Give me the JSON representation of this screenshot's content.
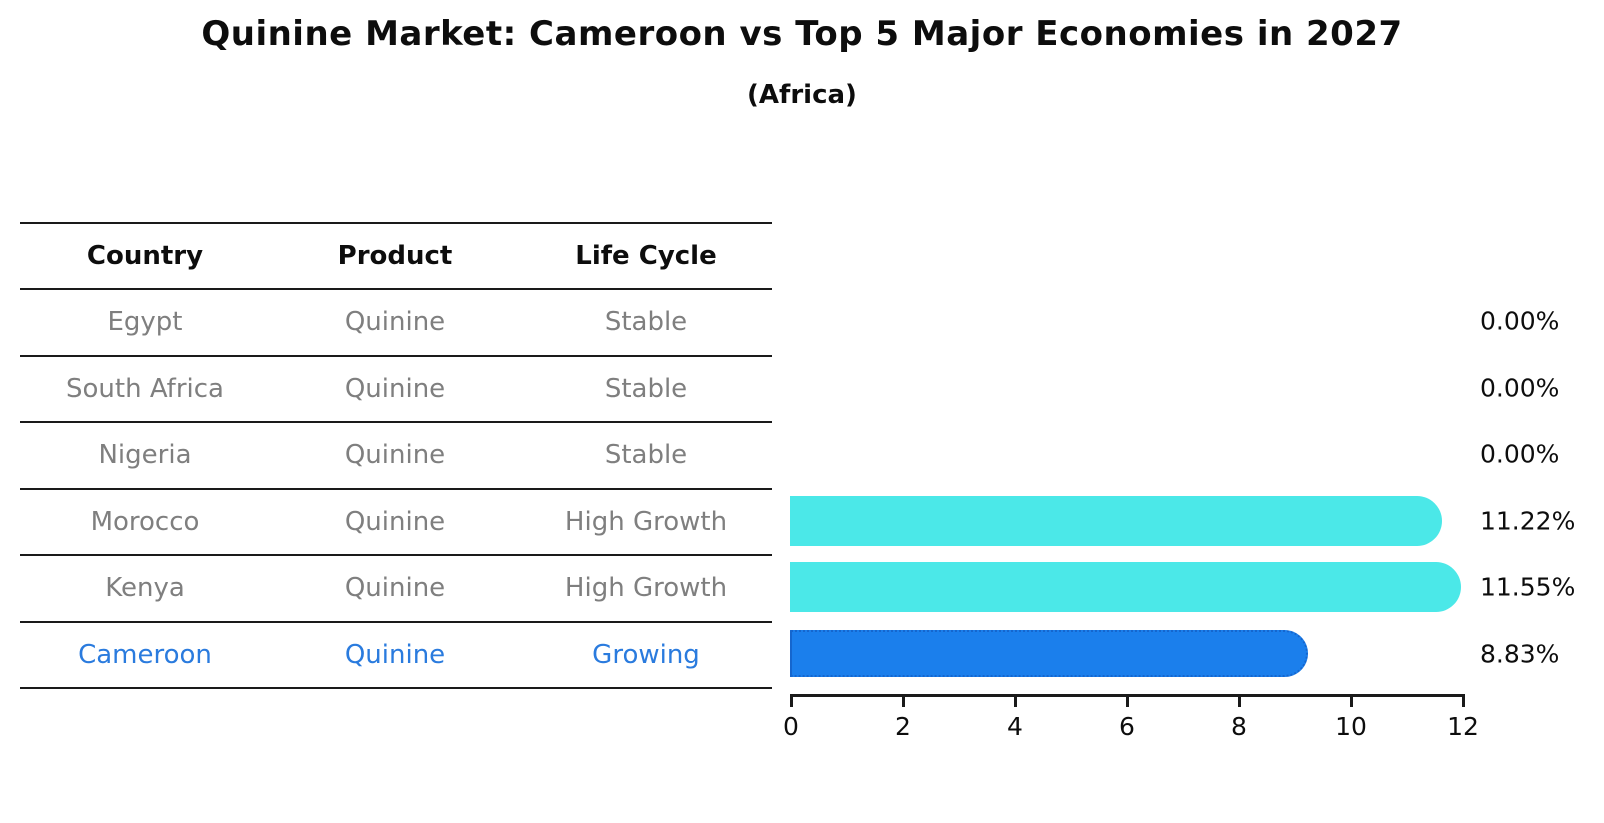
{
  "title": "Quinine Market: Cameroon vs Top 5 Major Economies in 2027",
  "subtitle": "(Africa)",
  "table": {
    "headers": [
      "Country",
      "Product",
      "Life Cycle"
    ],
    "rows": [
      {
        "country": "Egypt",
        "product": "Quinine",
        "life_cycle": "Stable",
        "highlight": false
      },
      {
        "country": "South Africa",
        "product": "Quinine",
        "life_cycle": "Stable",
        "highlight": false
      },
      {
        "country": "Nigeria",
        "product": "Quinine",
        "life_cycle": "Stable",
        "highlight": false
      },
      {
        "country": "Morocco",
        "product": "Quinine",
        "life_cycle": "High Growth",
        "highlight": false
      },
      {
        "country": "Kenya",
        "product": "Quinine",
        "life_cycle": "High Growth",
        "highlight": false
      },
      {
        "country": "Cameroon",
        "product": "Quinine",
        "life_cycle": "Growing",
        "highlight": true
      }
    ]
  },
  "chart_data": {
    "type": "bar",
    "orientation": "horizontal",
    "title": "Quinine Market: Cameroon vs Top 5 Major Economies in 2027",
    "subtitle": "(Africa)",
    "categories": [
      "Egypt",
      "South Africa",
      "Nigeria",
      "Morocco",
      "Kenya",
      "Cameroon"
    ],
    "values": [
      0.0,
      0.0,
      0.0,
      11.22,
      11.55,
      8.83
    ],
    "value_labels": [
      "0.00%",
      "0.00%",
      "0.00%",
      "11.22%",
      "11.55%",
      "8.83%"
    ],
    "highlight_category": "Cameroon",
    "xlim": [
      0,
      12
    ],
    "x_ticks": [
      "0",
      "2",
      "4",
      "6",
      "8",
      "10",
      "12"
    ],
    "grid": false,
    "legend": false
  },
  "colors": {
    "bar_default": "#4be8e8",
    "bar_highlight": "#1b7fec",
    "bar_highlight_border": "#1566ce",
    "text_muted": "#7f7f7f",
    "text_highlight": "#2a7bde",
    "axis": "#1a1a1a"
  }
}
